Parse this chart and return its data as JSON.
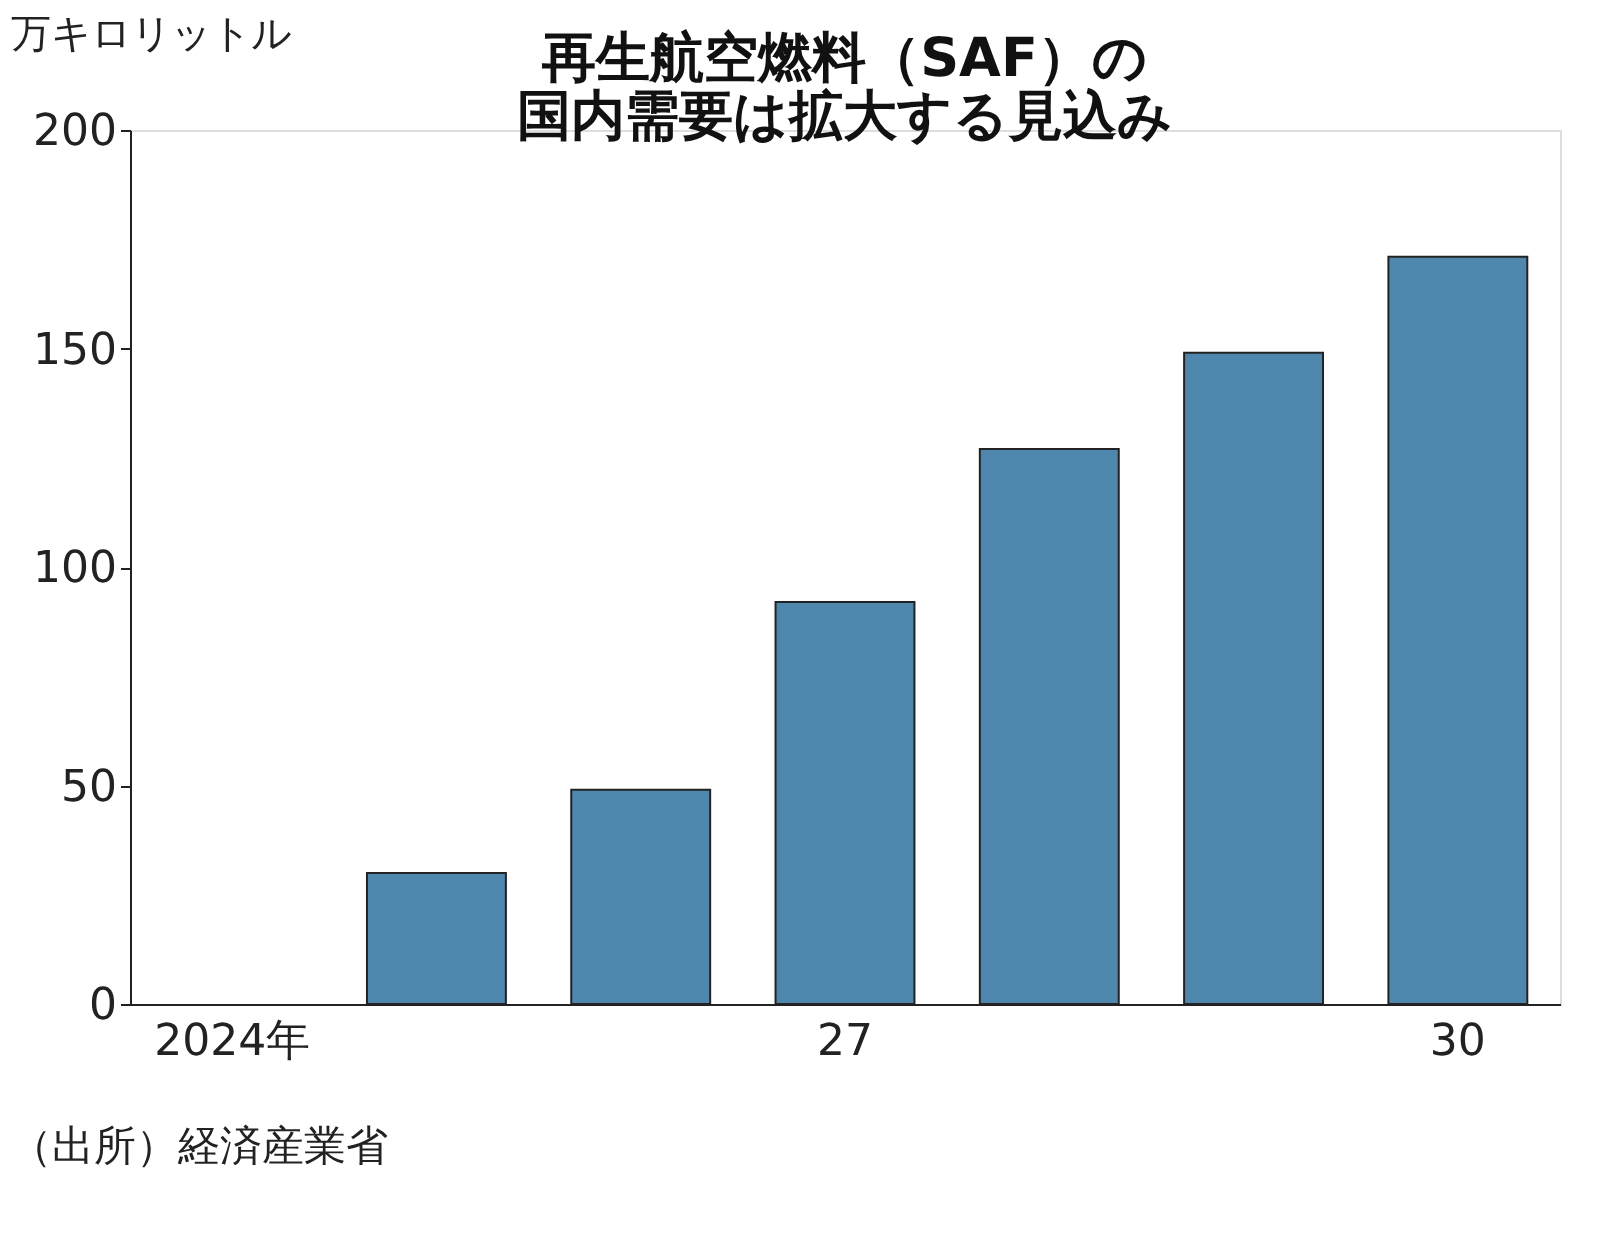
{
  "chart_data": {
    "type": "bar",
    "title": [
      "再生航空燃料（SAF）の",
      "国内需要は拡大する見込み"
    ],
    "ylabel": "万キロリットル",
    "categories": [
      "2024年",
      null,
      null,
      "27",
      null,
      null,
      "30"
    ],
    "values": [
      null,
      30,
      49,
      92,
      127,
      149,
      171
    ],
    "color": "#4e86ad",
    "ylim": [
      0,
      200
    ],
    "yticks": [
      0,
      50,
      100,
      150,
      200
    ],
    "grid": false,
    "annotations": [
      "（出所）経済産業省"
    ]
  }
}
